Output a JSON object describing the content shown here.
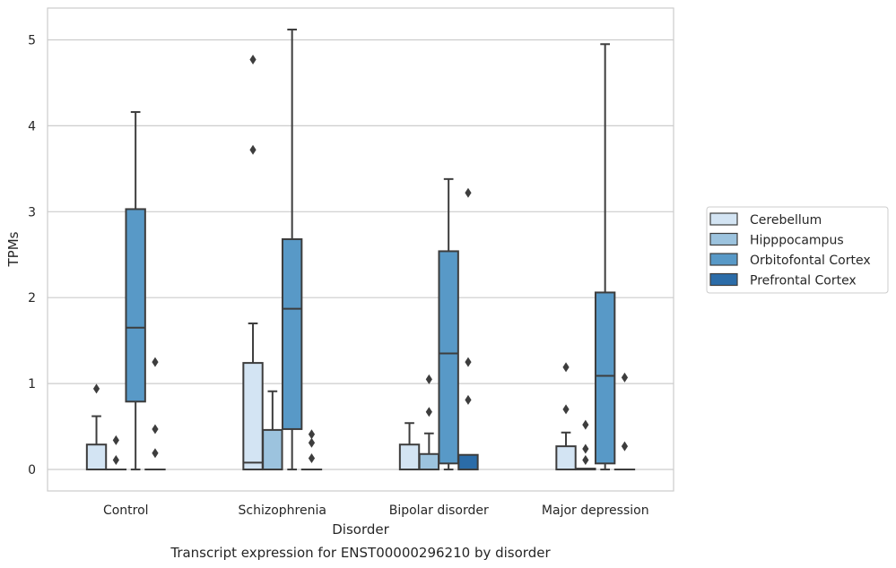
{
  "chart_data": {
    "type": "boxplot",
    "caption": "Transcript expression for ENST00000296210 by disorder",
    "xlabel": "Disorder",
    "ylabel": "TPMs",
    "ylim": [
      -0.25,
      5.37
    ],
    "yticks": [
      0,
      1,
      2,
      3,
      4,
      5
    ],
    "grid": true,
    "legend_position": "right",
    "categories": [
      "Control",
      "Schizophrenia",
      "Bipolar disorder",
      "Major depression"
    ],
    "series": [
      {
        "name": "Cerebellum",
        "color": "#d3e4f3",
        "boxes": [
          {
            "whislo": 0,
            "q1": 0,
            "med": 0,
            "q3": 0.29,
            "whishi": 0.62,
            "fliers": [
              0.94
            ]
          },
          {
            "whislo": 0,
            "q1": 0,
            "med": 0.08,
            "q3": 1.24,
            "whishi": 1.7,
            "fliers": [
              3.72,
              4.77
            ]
          },
          {
            "whislo": 0,
            "q1": 0,
            "med": 0,
            "q3": 0.29,
            "whishi": 0.54,
            "fliers": []
          },
          {
            "whislo": 0,
            "q1": 0,
            "med": 0,
            "q3": 0.27,
            "whishi": 0.43,
            "fliers": [
              0.7,
              1.19
            ]
          }
        ]
      },
      {
        "name": "Hipppocampus",
        "color": "#9cc3de",
        "boxes": [
          {
            "whislo": 0,
            "q1": 0,
            "med": 0,
            "q3": 0,
            "whishi": 0,
            "fliers": [
              0.11,
              0.34
            ]
          },
          {
            "whislo": 0,
            "q1": 0,
            "med": 0,
            "q3": 0.46,
            "whishi": 0.91,
            "fliers": []
          },
          {
            "whislo": 0,
            "q1": 0,
            "med": 0,
            "q3": 0.18,
            "whishi": 0.42,
            "fliers": [
              0.67,
              1.05
            ]
          },
          {
            "whislo": 0,
            "q1": 0,
            "med": 0,
            "q3": 0.01,
            "whishi": 0.01,
            "fliers": [
              0.11,
              0.24,
              0.52
            ]
          }
        ]
      },
      {
        "name": "Orbitofontal Cortex",
        "color": "#5899c7",
        "boxes": [
          {
            "whislo": 0,
            "q1": 0.79,
            "med": 1.65,
            "q3": 3.03,
            "whishi": 4.16,
            "fliers": []
          },
          {
            "whislo": 0,
            "q1": 0.47,
            "med": 1.87,
            "q3": 2.68,
            "whishi": 5.12,
            "fliers": []
          },
          {
            "whislo": 0,
            "q1": 0.07,
            "med": 1.35,
            "q3": 2.54,
            "whishi": 3.38,
            "fliers": []
          },
          {
            "whislo": 0,
            "q1": 0.07,
            "med": 1.09,
            "q3": 2.06,
            "whishi": 4.95,
            "fliers": []
          }
        ]
      },
      {
        "name": "Prefrontal Cortex",
        "color": "#2b6ca8",
        "boxes": [
          {
            "whislo": 0,
            "q1": 0,
            "med": 0,
            "q3": 0,
            "whishi": 0,
            "fliers": [
              0.19,
              0.47,
              1.25
            ]
          },
          {
            "whislo": 0,
            "q1": 0,
            "med": 0,
            "q3": 0,
            "whishi": 0,
            "fliers": [
              0.13,
              0.31,
              0.41
            ]
          },
          {
            "whislo": 0,
            "q1": 0,
            "med": 0,
            "q3": 0.17,
            "whishi": 0.17,
            "fliers": [
              0.81,
              1.25,
              3.22
            ]
          },
          {
            "whislo": 0,
            "q1": 0,
            "med": 0,
            "q3": 0,
            "whishi": 0,
            "fliers": [
              0.27,
              1.07
            ]
          }
        ]
      }
    ]
  }
}
